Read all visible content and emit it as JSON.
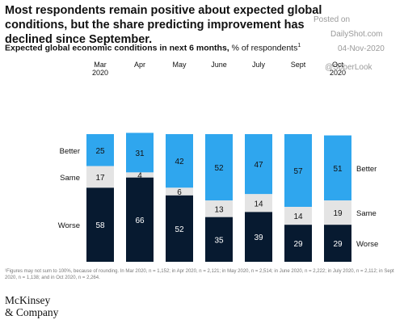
{
  "headline": "Most respondents remain positive about expected global conditions, but the share predicting improvement has declined since September.",
  "watermark": {
    "posted": "Posted on",
    "site": "DailyShot.com",
    "date": "04-Nov-2020",
    "handle": "@SoberLook"
  },
  "subtitle": {
    "bold": "Expected global economic conditions in next 6 months,",
    "rest": " % of respondents",
    "sup": "1"
  },
  "footnote": "¹Figures may not sum to 100%, because of rounding. In Mar 2020, n = 1,152; in Apr 2020, n = 2,121; in May 2020, n = 2,514; in June 2020, n = 2,222; in July 2020, n = 2,112; in Sept 2020, n = 1,138; and in Oct 2020, n = 2,264.",
  "logo": {
    "line1": "McKinsey",
    "line2": "& Company"
  },
  "colors": {
    "better": "#2fa6ee",
    "same": "#e4e4e4",
    "worse": "#071a30"
  },
  "chart_data": {
    "type": "bar",
    "stacked": true,
    "categories": [
      [
        "Mar",
        "2020"
      ],
      [
        "Apr"
      ],
      [
        "May"
      ],
      [
        "June"
      ],
      [
        "July"
      ],
      [
        "Sept"
      ],
      [
        "Oct",
        "2020"
      ]
    ],
    "series": [
      {
        "name": "Better",
        "values": [
          25,
          31,
          42,
          52,
          47,
          57,
          51
        ]
      },
      {
        "name": "Same",
        "values": [
          17,
          4,
          6,
          13,
          14,
          14,
          19
        ]
      },
      {
        "name": "Worse",
        "values": [
          58,
          66,
          52,
          35,
          39,
          29,
          29
        ]
      }
    ],
    "left_labels": [
      "Better",
      "Same",
      "Worse"
    ],
    "right_labels": [
      "Better",
      "Same",
      "Worse"
    ]
  }
}
